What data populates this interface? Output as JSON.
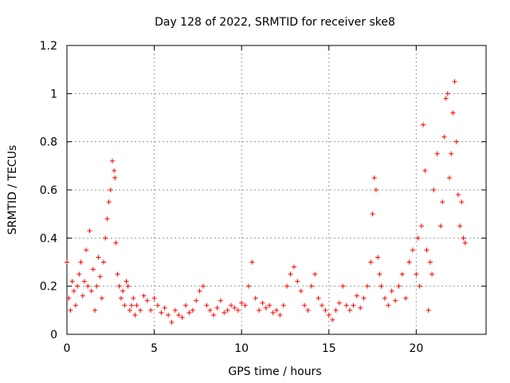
{
  "chart_data": {
    "type": "scatter",
    "title": "Day 128 of 2022, SRMTID for receiver ske8",
    "xlabel": "GPS time / hours",
    "ylabel": "SRMTID / TECUs",
    "xlim": [
      0,
      24
    ],
    "ylim": [
      0,
      1.2
    ],
    "xticks": [
      0,
      5,
      10,
      15,
      20
    ],
    "yticks": [
      0,
      0.2,
      0.4,
      0.6,
      0.8,
      1,
      1.2
    ],
    "xtick_labels": [
      "0",
      "5",
      "10",
      "15",
      "20"
    ],
    "ytick_labels": [
      "0",
      "0.2",
      "0.4",
      "0.6",
      "0.8",
      "1",
      "1.2"
    ],
    "grid": true,
    "marker": "+",
    "color": "#ff0000",
    "series": [
      {
        "name": "SRMTID",
        "x": [
          0.0,
          0.1,
          0.2,
          0.3,
          0.4,
          0.5,
          0.6,
          0.7,
          0.8,
          0.9,
          1.0,
          1.1,
          1.2,
          1.3,
          1.4,
          1.5,
          1.6,
          1.7,
          1.8,
          1.9,
          2.0,
          2.1,
          2.2,
          2.3,
          2.4,
          2.5,
          2.6,
          2.7,
          2.75,
          2.8,
          2.9,
          3.0,
          3.1,
          3.2,
          3.3,
          3.4,
          3.5,
          3.6,
          3.7,
          3.8,
          3.9,
          4.0,
          4.2,
          4.4,
          4.6,
          4.8,
          5.0,
          5.2,
          5.4,
          5.6,
          5.8,
          6.0,
          6.2,
          6.4,
          6.6,
          6.8,
          7.0,
          7.2,
          7.4,
          7.6,
          7.8,
          8.0,
          8.2,
          8.4,
          8.6,
          8.8,
          9.0,
          9.2,
          9.4,
          9.6,
          9.8,
          10.0,
          10.2,
          10.4,
          10.6,
          10.8,
          11.0,
          11.2,
          11.4,
          11.6,
          11.8,
          12.0,
          12.2,
          12.4,
          12.6,
          12.8,
          13.0,
          13.2,
          13.4,
          13.6,
          13.8,
          14.0,
          14.2,
          14.4,
          14.6,
          14.8,
          15.0,
          15.2,
          15.4,
          15.6,
          15.8,
          16.0,
          16.2,
          16.4,
          16.6,
          16.8,
          17.0,
          17.2,
          17.4,
          17.5,
          17.6,
          17.7,
          17.8,
          17.9,
          18.0,
          18.2,
          18.4,
          18.6,
          18.8,
          19.0,
          19.2,
          19.4,
          19.6,
          19.8,
          20.0,
          20.1,
          20.2,
          20.3,
          20.4,
          20.5,
          20.6,
          20.7,
          20.8,
          20.9,
          21.0,
          21.2,
          21.4,
          21.5,
          21.6,
          21.7,
          21.8,
          21.9,
          22.0,
          22.1,
          22.2,
          22.3,
          22.4,
          22.5,
          22.6,
          22.7,
          22.8
        ],
        "y": [
          0.3,
          0.15,
          0.1,
          0.22,
          0.18,
          0.12,
          0.2,
          0.25,
          0.3,
          0.16,
          0.22,
          0.35,
          0.2,
          0.43,
          0.18,
          0.27,
          0.1,
          0.2,
          0.32,
          0.24,
          0.15,
          0.3,
          0.4,
          0.48,
          0.55,
          0.6,
          0.72,
          0.68,
          0.65,
          0.38,
          0.25,
          0.2,
          0.15,
          0.18,
          0.12,
          0.22,
          0.2,
          0.1,
          0.12,
          0.15,
          0.08,
          0.12,
          0.1,
          0.16,
          0.14,
          0.1,
          0.15,
          0.12,
          0.09,
          0.11,
          0.08,
          0.05,
          0.1,
          0.08,
          0.07,
          0.12,
          0.09,
          0.1,
          0.14,
          0.18,
          0.2,
          0.12,
          0.1,
          0.08,
          0.11,
          0.14,
          0.09,
          0.1,
          0.12,
          0.11,
          0.1,
          0.13,
          0.12,
          0.2,
          0.3,
          0.15,
          0.1,
          0.13,
          0.11,
          0.12,
          0.09,
          0.1,
          0.08,
          0.12,
          0.2,
          0.25,
          0.28,
          0.22,
          0.18,
          0.12,
          0.1,
          0.2,
          0.25,
          0.15,
          0.12,
          0.1,
          0.08,
          0.06,
          0.1,
          0.13,
          0.2,
          0.12,
          0.1,
          0.12,
          0.16,
          0.11,
          0.15,
          0.2,
          0.3,
          0.5,
          0.65,
          0.6,
          0.32,
          0.25,
          0.2,
          0.15,
          0.12,
          0.18,
          0.14,
          0.2,
          0.25,
          0.15,
          0.3,
          0.35,
          0.25,
          0.4,
          0.2,
          0.45,
          0.87,
          0.68,
          0.35,
          0.1,
          0.3,
          0.25,
          0.6,
          0.75,
          0.45,
          0.55,
          0.82,
          0.98,
          1.0,
          0.65,
          0.75,
          0.92,
          1.05,
          0.8,
          0.58,
          0.45,
          0.55,
          0.4,
          0.38
        ]
      }
    ]
  }
}
